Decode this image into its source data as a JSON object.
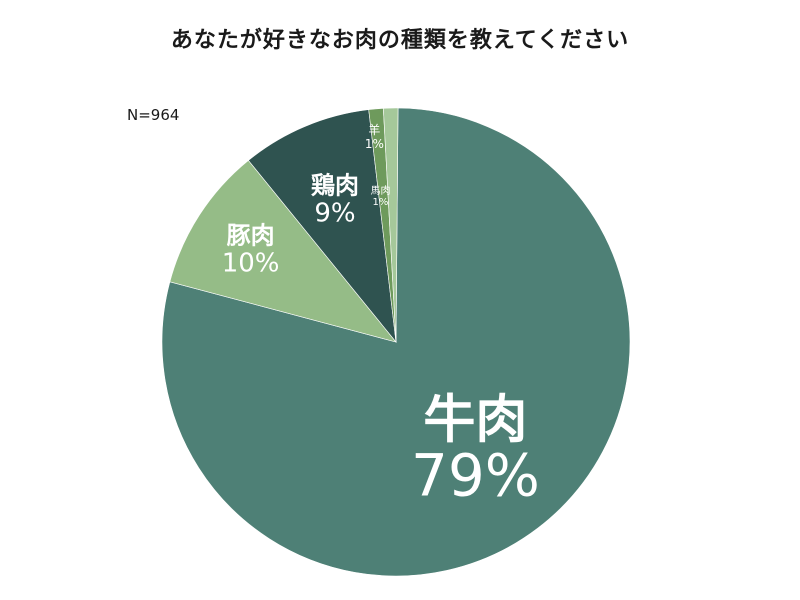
{
  "title": "あなたが好きなお肉の種類を教えてください",
  "sample_size": "N=964",
  "chart_data": {
    "type": "pie",
    "title": "あなたが好きなお肉の種類を教えてください",
    "slices": [
      {
        "label": "牛肉",
        "percent_label": "79%",
        "value": 79,
        "color": "#4e8076"
      },
      {
        "label": "豚肉",
        "percent_label": "10%",
        "value": 10,
        "color": "#95bc87"
      },
      {
        "label": "鶏肉",
        "percent_label": "9%",
        "value": 9,
        "color": "#2f5350"
      },
      {
        "label": "羊",
        "percent_label": "1%",
        "value": 1,
        "color": "#6e9a5c"
      },
      {
        "label": "馬肉",
        "percent_label": "1%",
        "value": 1,
        "color": "#a5c89a"
      }
    ],
    "start": "12 o'clock",
    "direction": "clockwise",
    "legend": "none"
  }
}
